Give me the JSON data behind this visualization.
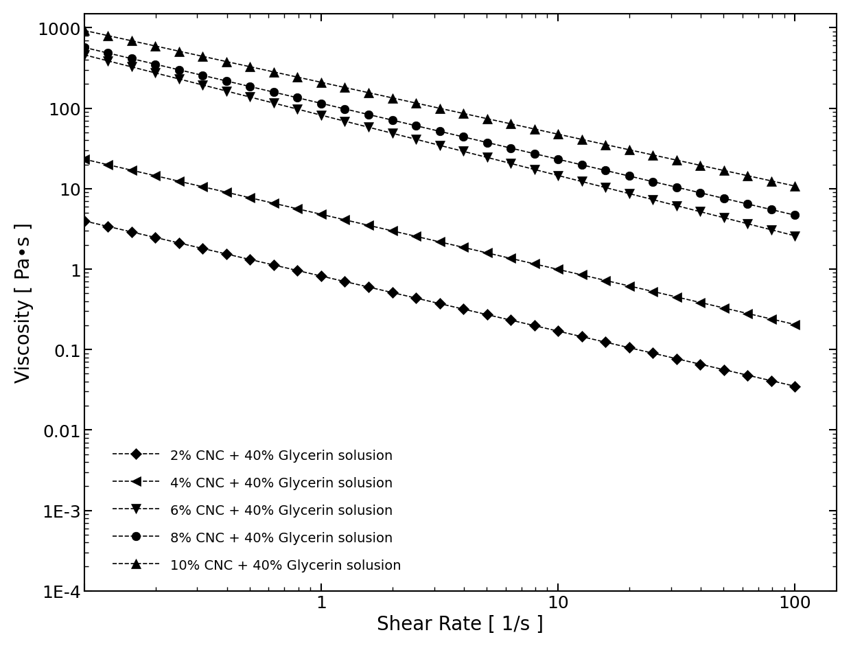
{
  "xlabel": "Shear Rate [ 1/s ]",
  "ylabel": "Viscosity [ Pa•s ]",
  "xlim": [
    0.1,
    150
  ],
  "ylim": [
    0.0001,
    1500
  ],
  "background_color": "#ffffff",
  "series": [
    {
      "label": "2% CNC + 40% Glycerin solusion",
      "marker": "D",
      "ms": 8,
      "K": 0.82,
      "n": -0.685
    },
    {
      "label": "4% CNC + 40% Glycerin solusion",
      "marker": "<",
      "ms": 10,
      "K": 4.8,
      "n": -0.685
    },
    {
      "label": "6% CNC + 40% Glycerin solusion",
      "marker": "v",
      "ms": 10,
      "K": 82.0,
      "n": -0.75
    },
    {
      "label": "8% CNC + 40% Glycerin solusion",
      "marker": "o",
      "ms": 9,
      "K": 115.0,
      "n": -0.695
    },
    {
      "label": "10% CNC + 40% Glycerin solusion",
      "marker": "^",
      "ms": 10,
      "K": 210.0,
      "n": -0.645
    }
  ],
  "label_font_size": 20,
  "tick_font_size": 18,
  "legend_font_size": 14,
  "line_width": 1.2,
  "marker_edge_width": 0.5
}
